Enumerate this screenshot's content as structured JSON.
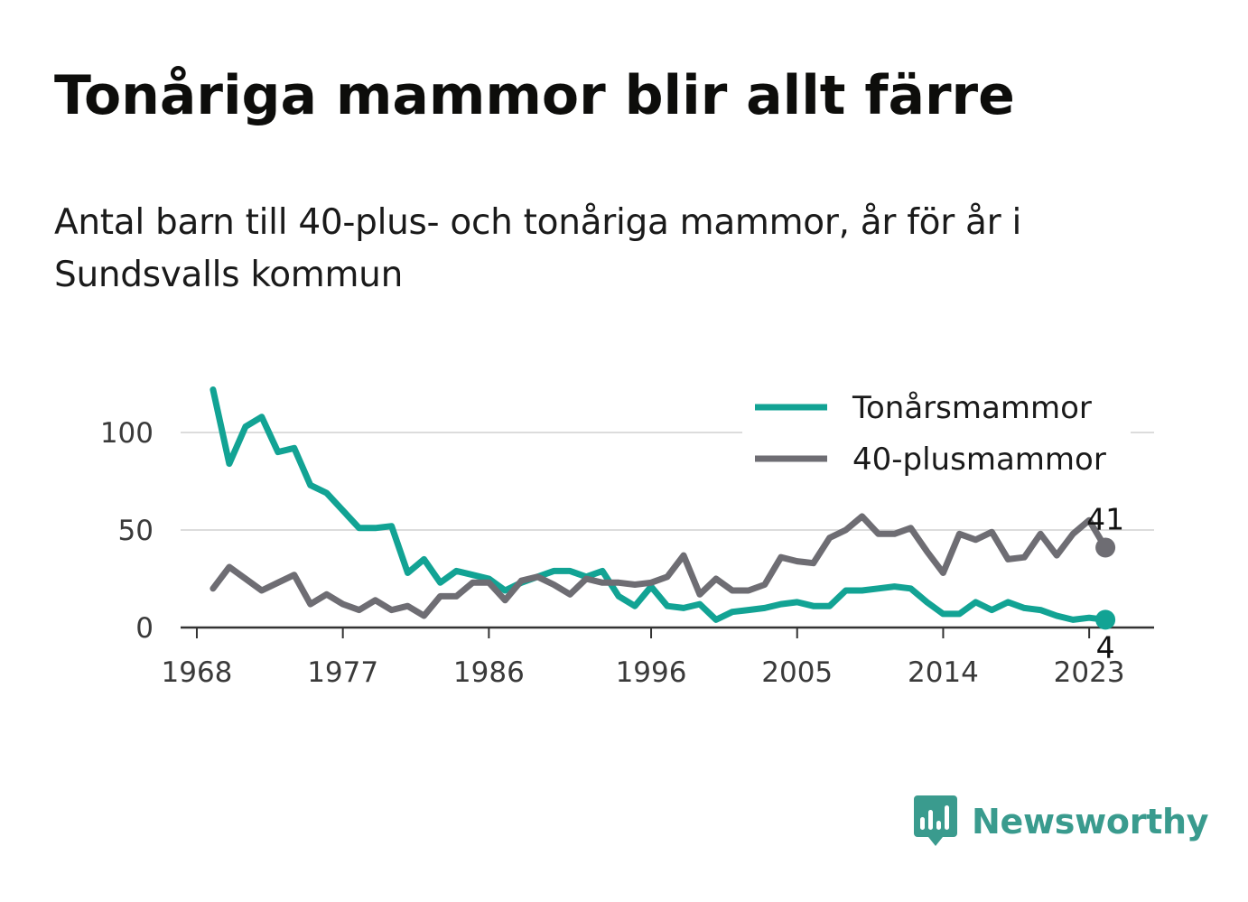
{
  "title": "Tonåriga mammor blir allt färre",
  "subtitle": "Antal barn till 40-plus- och tonåriga mammor, år för år i Sundsvalls kommun",
  "brand": {
    "name": "Newsworthy",
    "logo_icon": "bar-chart-speech-bubble-icon",
    "color": "#3a9b8e"
  },
  "chart_data": {
    "type": "line",
    "title": "Tonåriga mammor blir allt färre",
    "subtitle": "Antal barn till 40-plus- och tonåriga mammor, år för år i Sundsvalls kommun",
    "xlabel": "",
    "ylabel": "",
    "xlim": [
      1967,
      2027
    ],
    "ylim": [
      0,
      125
    ],
    "x_ticks": [
      1968,
      1977,
      1986,
      1996,
      2005,
      2014,
      2023
    ],
    "y_ticks": [
      0,
      50,
      100
    ],
    "grid": "horizontal",
    "legend": "top-right",
    "x": [
      1969,
      1970,
      1971,
      1972,
      1973,
      1974,
      1975,
      1976,
      1977,
      1978,
      1979,
      1980,
      1981,
      1982,
      1983,
      1984,
      1985,
      1986,
      1987,
      1988,
      1989,
      1990,
      1991,
      1992,
      1993,
      1994,
      1995,
      1996,
      1997,
      1998,
      1999,
      2000,
      2001,
      2002,
      2003,
      2004,
      2005,
      2006,
      2007,
      2008,
      2009,
      2010,
      2011,
      2012,
      2013,
      2014,
      2015,
      2016,
      2017,
      2018,
      2019,
      2020,
      2021,
      2022,
      2023,
      2024
    ],
    "series": [
      {
        "name": "Tonårsmammor",
        "color": "#12a394",
        "values": [
          122,
          84,
          103,
          108,
          90,
          92,
          73,
          69,
          60,
          51,
          51,
          52,
          28,
          35,
          23,
          29,
          27,
          25,
          19,
          23,
          26,
          29,
          29,
          26,
          29,
          16,
          11,
          21,
          11,
          10,
          12,
          4,
          8,
          9,
          10,
          12,
          13,
          11,
          11,
          19,
          19,
          20,
          21,
          20,
          13,
          7,
          7,
          13,
          9,
          13,
          10,
          9,
          6,
          4,
          5,
          4
        ],
        "end_label": "4"
      },
      {
        "name": "40-plusmammor",
        "color": "#6e6d73",
        "values": [
          20,
          31,
          25,
          19,
          23,
          27,
          12,
          17,
          12,
          9,
          14,
          9,
          11,
          6,
          16,
          16,
          23,
          23,
          14,
          24,
          26,
          22,
          17,
          25,
          23,
          23,
          22,
          23,
          26,
          37,
          17,
          25,
          19,
          19,
          22,
          36,
          34,
          33,
          46,
          50,
          57,
          48,
          48,
          51,
          39,
          28,
          48,
          45,
          49,
          35,
          36,
          48,
          37,
          48,
          55,
          41
        ],
        "end_label": "41"
      }
    ]
  }
}
